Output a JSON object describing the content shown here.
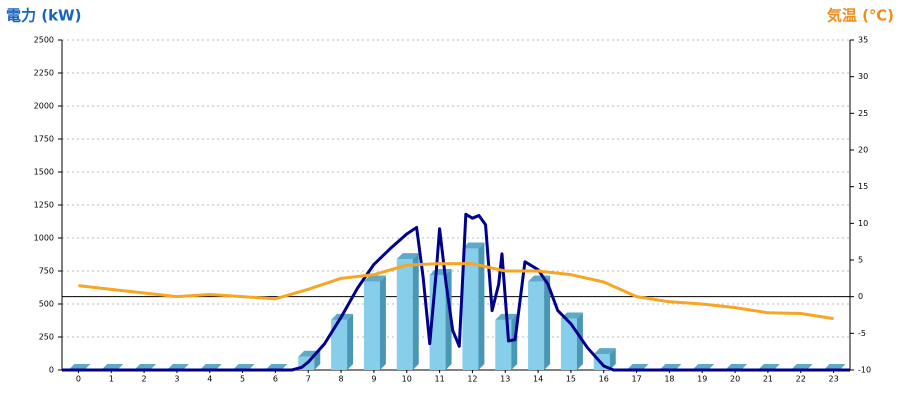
{
  "chart_data": {
    "type": "combo",
    "y_title": "電力 (kW)",
    "y2_title": "気温 (℃)",
    "categories": [
      "0",
      "1",
      "2",
      "3",
      "4",
      "5",
      "6",
      "7",
      "8",
      "9",
      "10",
      "11",
      "12",
      "13",
      "14",
      "15",
      "16",
      "17",
      "18",
      "19",
      "20",
      "21",
      "22",
      "23"
    ],
    "xlim": [
      -0.5,
      23.5
    ],
    "ylim": [
      0,
      2500
    ],
    "yticks": [
      0,
      250,
      500,
      750,
      1000,
      1250,
      1500,
      1750,
      2000,
      2250,
      2500
    ],
    "y2lim": [
      -10,
      35
    ],
    "y2ticks": [
      -10,
      -5,
      0,
      5,
      10,
      15,
      20,
      25,
      30,
      35
    ],
    "grid": true,
    "y2_reference_line": 0,
    "series": [
      {
        "type": "bar",
        "color": "#87ceeb",
        "values": [
          0,
          0,
          0,
          0,
          0,
          0,
          0,
          100,
          380,
          670,
          840,
          720,
          920,
          380,
          670,
          390,
          120,
          0,
          0,
          0,
          0,
          0,
          0,
          0
        ]
      },
      {
        "type": "line",
        "color": "#00008b",
        "x": [
          -0.5,
          6.5,
          6.8,
          7,
          7.5,
          8,
          8.5,
          9,
          9.5,
          10,
          10.3,
          10.5,
          10.7,
          10.9,
          11,
          11.2,
          11.4,
          11.6,
          11.8,
          12,
          12.2,
          12.4,
          12.6,
          12.8,
          12.9,
          13.1,
          13.3,
          13.6,
          14,
          14.3,
          14.6,
          15,
          15.5,
          16,
          16.3,
          23.5
        ],
        "values": [
          0,
          0,
          20,
          60,
          200,
          400,
          620,
          800,
          920,
          1030,
          1080,
          700,
          200,
          750,
          1070,
          650,
          300,
          180,
          1180,
          1150,
          1170,
          1100,
          450,
          650,
          880,
          220,
          230,
          820,
          760,
          650,
          450,
          350,
          170,
          30,
          0,
          0
        ]
      },
      {
        "type": "line",
        "axis": "y2",
        "color": "#f5a623",
        "values": [
          1.5,
          1.0,
          0.5,
          0,
          0.3,
          0,
          -0.3,
          1,
          2.5,
          3,
          4.3,
          4.5,
          4.5,
          3.5,
          3.5,
          3,
          2,
          0,
          -0.7,
          -1,
          -1.5,
          -2.2,
          -2.3,
          -3
        ]
      }
    ]
  }
}
